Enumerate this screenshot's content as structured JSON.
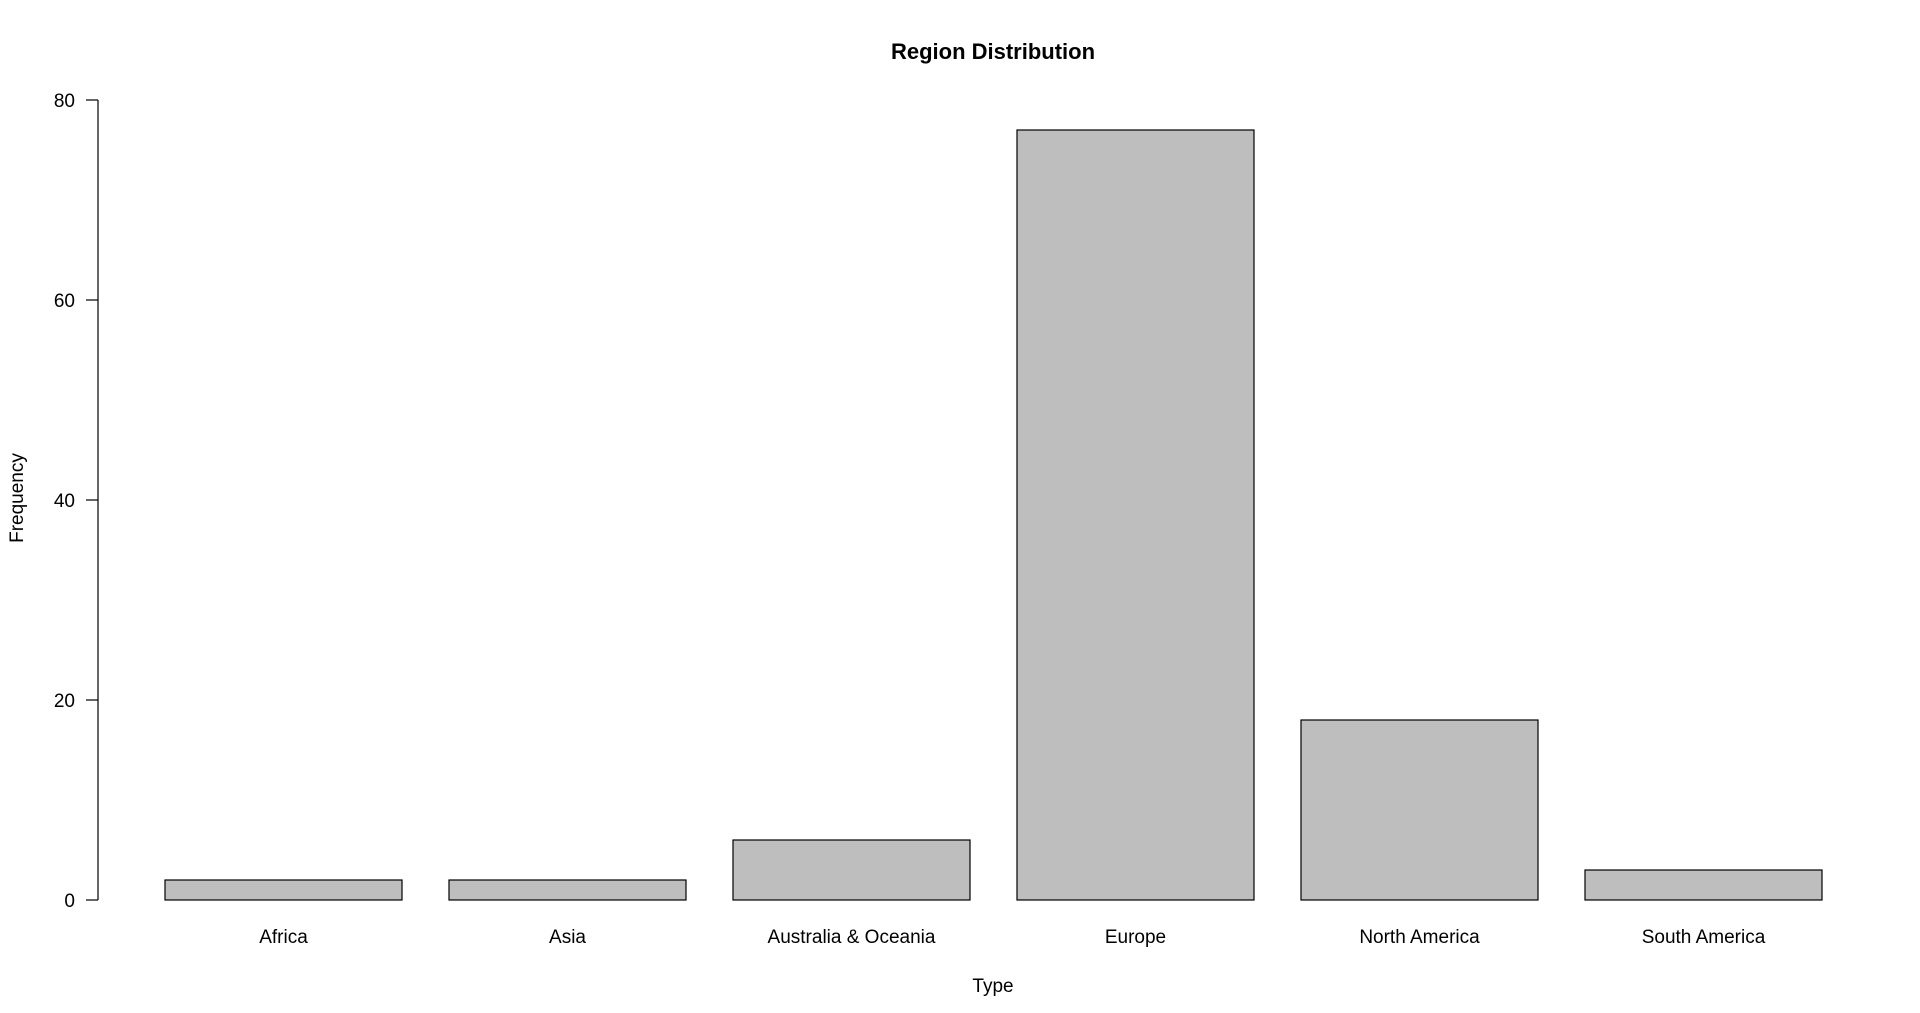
{
  "chart_data": {
    "type": "bar",
    "title": "Region Distribution",
    "xlabel": "Type",
    "ylabel": "Frequency",
    "categories": [
      "Africa",
      "Asia",
      "Australia & Oceania",
      "Europe",
      "North America",
      "South America"
    ],
    "values": [
      2,
      2,
      6,
      77,
      18,
      3
    ],
    "ylim": [
      0,
      80
    ],
    "yticks": [
      "0",
      "20",
      "40",
      "60",
      "80"
    ],
    "bar_color": "#bebebe",
    "grid": false,
    "legend": "none"
  }
}
